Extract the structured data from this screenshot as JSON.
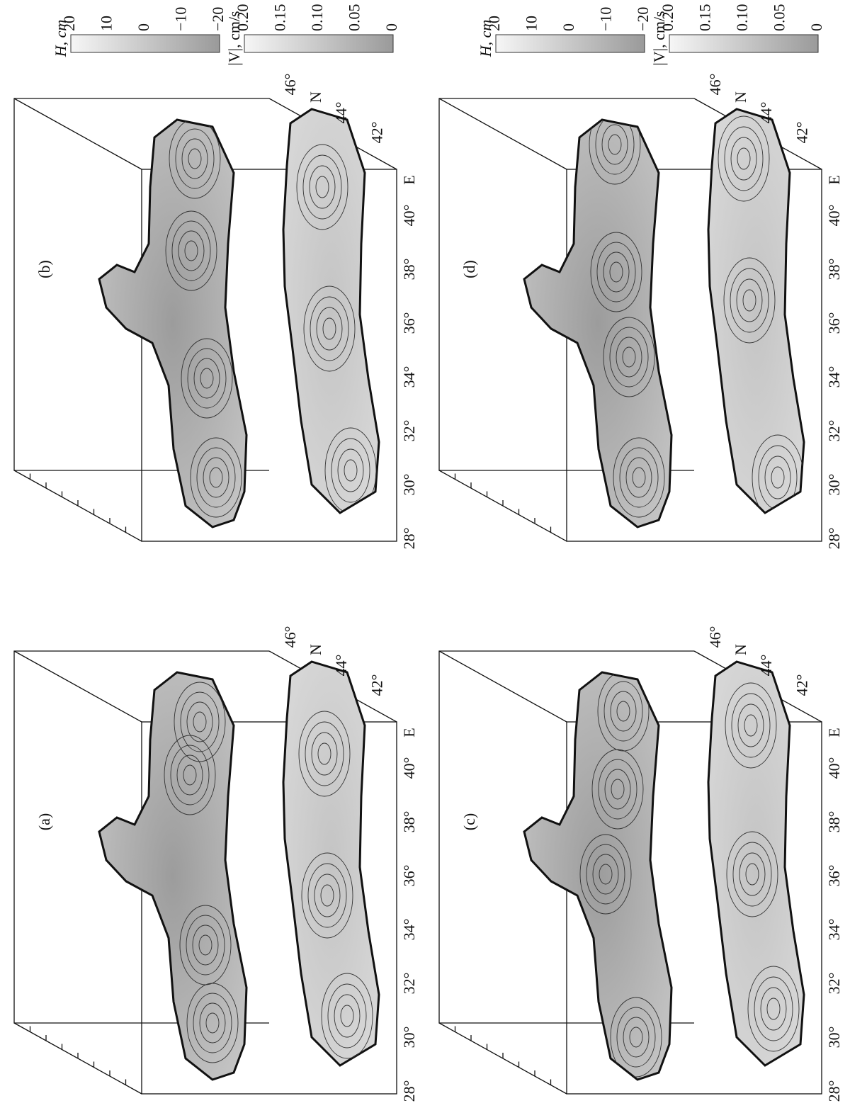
{
  "panels": [
    {
      "label": "(a)"
    },
    {
      "label": "(b)"
    },
    {
      "label": "(c)"
    },
    {
      "label": "(d)"
    }
  ],
  "axes": {
    "lon_ticks": [
      "28°",
      "30°",
      "32°",
      "34°",
      "36°",
      "38°",
      "40°"
    ],
    "lon_label": "E",
    "lat_ticks": [
      "42°",
      "44°",
      "46°"
    ],
    "lat_label": "N"
  },
  "colorbars": [
    {
      "title": "H, cm",
      "ticks": [
        "20",
        "10",
        "0",
        "−10",
        "−20"
      ]
    },
    {
      "title": "|V|, cm/s",
      "ticks": [
        "0.20",
        "0.15",
        "0.10",
        "0.05",
        "0"
      ]
    }
  ]
}
